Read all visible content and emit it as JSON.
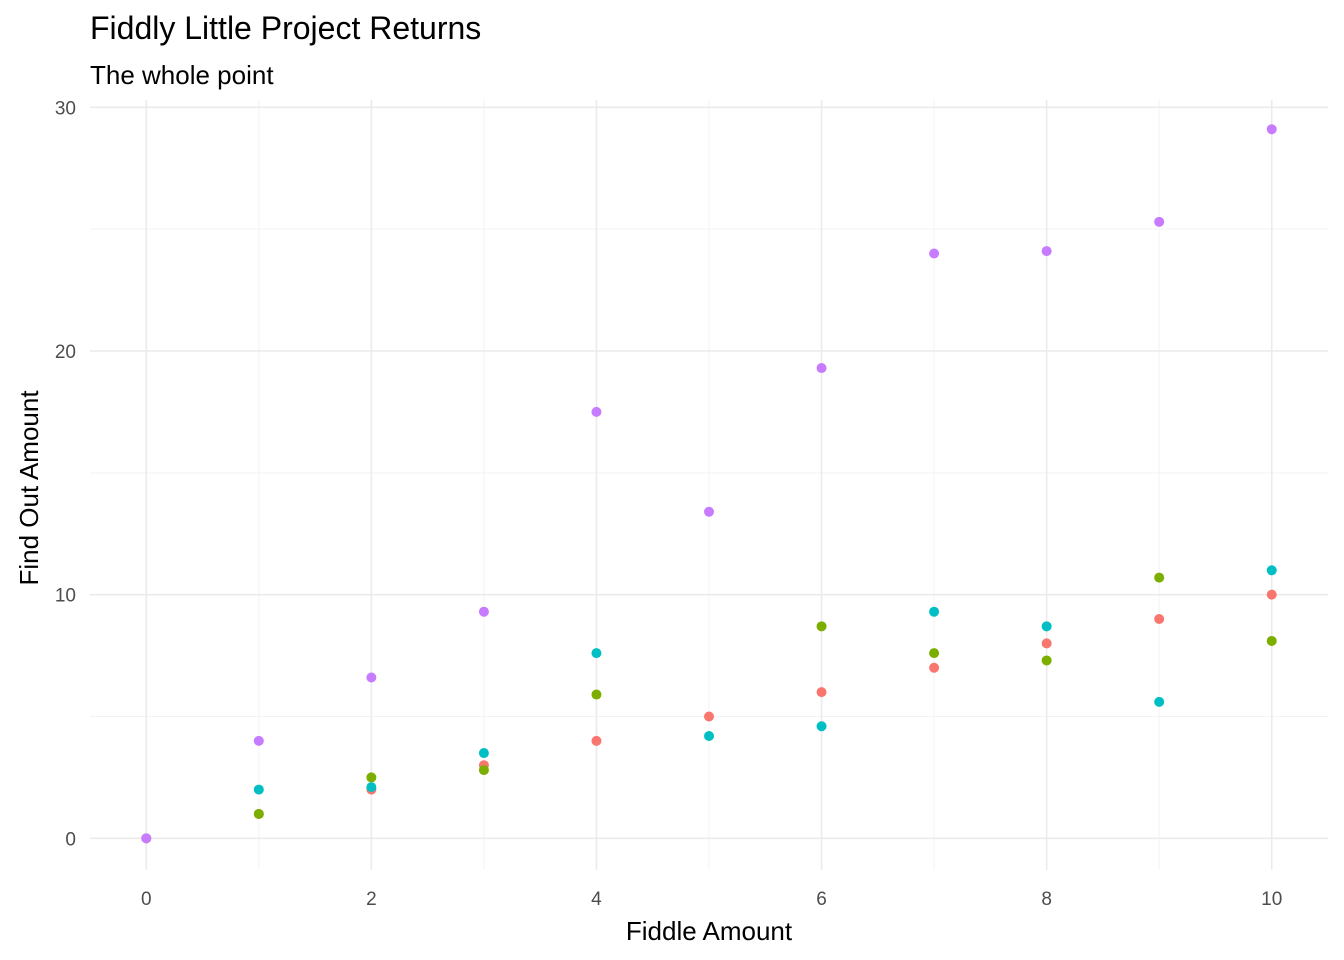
{
  "chart_data": {
    "type": "scatter",
    "title": "Fiddly Little Project Returns",
    "subtitle": "The whole point",
    "xlabel": "Fiddle Amount",
    "ylabel": "Find Out Amount",
    "xlim": [
      -0.5,
      10.5
    ],
    "ylim": [
      -1.3,
      30.3
    ],
    "x_ticks": [
      0,
      2,
      4,
      6,
      8,
      10
    ],
    "y_ticks": [
      0,
      10,
      20,
      30
    ],
    "x_ticks_minor": [
      1,
      3,
      5,
      7,
      9
    ],
    "y_ticks_minor": [
      5,
      15,
      25
    ],
    "grid": true,
    "legend": "none",
    "series": [
      {
        "color": "#F8766D",
        "x": [
          0,
          1,
          2,
          3,
          4,
          5,
          6,
          7,
          8,
          9,
          10
        ],
        "y": [
          0,
          1,
          2,
          3,
          4,
          5,
          6,
          7,
          8,
          9,
          10
        ]
      },
      {
        "color": "#7CAE00",
        "x": [
          1,
          2,
          3,
          4,
          6,
          7,
          8,
          9,
          10
        ],
        "y": [
          1,
          2.5,
          2.8,
          5.9,
          8.7,
          7.6,
          7.3,
          10.7,
          8.1
        ]
      },
      {
        "color": "#00BFC4",
        "x": [
          1,
          2,
          3,
          4,
          5,
          6,
          7,
          8,
          9,
          10
        ],
        "y": [
          2,
          2.1,
          3.5,
          7.6,
          4.2,
          4.6,
          9.3,
          8.7,
          5.6,
          11
        ]
      },
      {
        "color": "#C77CFF",
        "x": [
          0,
          1,
          2,
          3,
          4,
          5,
          6,
          7,
          8,
          9,
          10
        ],
        "y": [
          0,
          4,
          6.6,
          9.3,
          17.5,
          13.4,
          19.3,
          24,
          24.1,
          25.3,
          29.1
        ]
      }
    ]
  }
}
